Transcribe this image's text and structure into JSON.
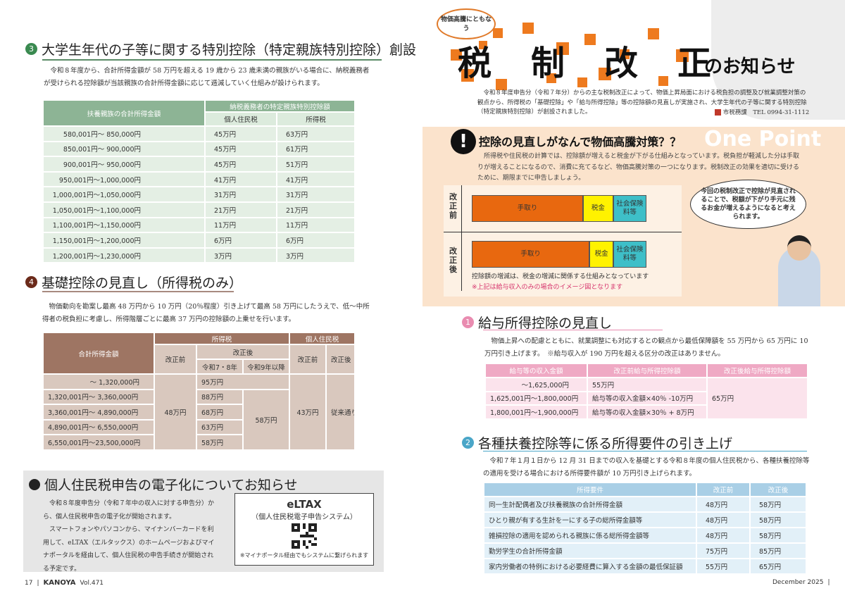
{
  "left_page": {
    "section3": {
      "number": "3",
      "title": "大学生年代の子等に関する特別控除（特定親族特別控除）創設",
      "body": "令和８年度から、合計所得金額が 58 万円を超える 19 歳から 23 歳未満の親族がいる場合に、納税義務者が受けられる控除額が当該親族の合計所得金額に応じて逓減していく仕組みが設けられます。",
      "table": {
        "col_income": "扶養親族の合計所得金額",
        "col_group": "納税義務者の特定親族特別控除額",
        "col_resident": "個人住民税",
        "col_income_tax": "所得税",
        "rows": [
          [
            "580,001円～ 850,000円",
            "45万円",
            "63万円"
          ],
          [
            "850,001円～ 900,000円",
            "45万円",
            "61万円"
          ],
          [
            "900,001円～ 950,000円",
            "45万円",
            "51万円"
          ],
          [
            "950,001円～1,000,000円",
            "41万円",
            "41万円"
          ],
          [
            "1,000,001円～1,050,000円",
            "31万円",
            "31万円"
          ],
          [
            "1,050,001円～1,100,000円",
            "21万円",
            "21万円"
          ],
          [
            "1,100,001円～1,150,000円",
            "11万円",
            "11万円"
          ],
          [
            "1,150,001円～1,200,000円",
            "6万円",
            "6万円"
          ],
          [
            "1,200,001円～1,230,000円",
            "3万円",
            "3万円"
          ]
        ]
      }
    },
    "section4": {
      "number": "4",
      "title": "基礎控除の見直し（所得税のみ）",
      "body": "物価動向を勘案し最高 48 万円から 10 万円（20％程度）引き上げて最高 58 万円にしたうえで、低～中所得者の税負担に考慮し、所得階層ごとに最高 37 万円の控除額の上乗せを行います。",
      "table": {
        "col_income": "合計所得金額",
        "col_income_tax": "所得税",
        "col_resident": "個人住民税",
        "before": "改正前",
        "after": "改正後",
        "r78": "令和7・8年",
        "r9": "令和9年以降",
        "rows": [
          "～ 1,320,000円",
          "1,320,001円～ 3,360,000円",
          "3,360,001円～ 4,890,000円",
          "4,890,001円～ 6,550,000円",
          "6,550,001円～23,500,000円"
        ],
        "it_before": "48万円",
        "r78_values": [
          "95万円",
          "88万円",
          "68万円",
          "63万円",
          "58万円"
        ],
        "r9_value": "58万円",
        "res_before": "43万円",
        "res_after": "従来通り"
      }
    },
    "efile": {
      "title": "個人住民税申告の電子化についてお知らせ",
      "p1": "令和８年度申告分（令和７年中の収入に対する申告分）から、個人住民税申告の電子化が開始されます。",
      "p2": "スマートフォンやパソコンから、マイナンバーカードを利用して、eLTAX（エルタックス）のホームページおよびマイナポータルを経由して、個人住民税の申告手続きが開始される予定です。",
      "box_title": "eLTAX",
      "box_subtitle": "（個人住民税電子申告システム）",
      "box_note": "※マイナポータル経由でもシステムに繋げられます"
    },
    "footer": {
      "page": "17",
      "sep": "|",
      "brand": "KANOYA",
      "vol": "Vol.471"
    }
  },
  "right_page": {
    "bubble": "物価高騰にともなう",
    "title_chars": [
      "税",
      "制",
      "改",
      "正"
    ],
    "title_suffix": "のお知らせ",
    "intro": "令和８年度申告分（令和７年分）からの主な税制改正によって、物価上昇局面における税負担の調整及び就業調整対策の観点から、所得税の「基礎控除」や「給与所得控除」等の控除額の見直しが実施され、大学生年代の子等に関する特別控除（特定親族特別控除）が創設されました。",
    "contact": {
      "dept": "市税務課",
      "tel": "TEL 0994-31-1112"
    },
    "one_point": {
      "watermark": "One Point",
      "title": "控除の見直しがなんで物価高騰対策？？",
      "body": "所得税や住民税の計算では、控除額が増えると税金が下がる仕組みとなっています。税負担が軽減した分は手取りが増えることになるので、消費に充てるなど、物価高騰対策の一つになります。税制改正の効果を適切に受けるために、期限までに申告しましょう。",
      "before_label": "改正前",
      "after_label": "改正後",
      "take_home": "手取り",
      "tax": "税金",
      "social": "社会保険料等",
      "note": "控除額の増減は、税金の増減に関係する仕組みとなっています",
      "note_red": "※上記は給与収入のみの場合のイメージ図となります",
      "speech": "今回の税制改正で控除が見直されることで、税額が下がり手元に残るお金が増えるようになると考えられます。"
    },
    "section1": {
      "number": "1",
      "title": "給与所得控除の見直し",
      "body": "物価上昇への配慮とともに、就業調整にも対応するとの観点から最低保障額を 55 万円から 65 万円に 10 万円引き上げます。　※給与収入が 190 万円を超える区分の改正はありません。",
      "table": {
        "headers": [
          "給与等の収入金額",
          "改正前給与所得控除額",
          "改正後給与所得控除額"
        ],
        "rows": [
          [
            "～1,625,000円",
            "55万円"
          ],
          [
            "1,625,001円～1,800,000円",
            "給与等の収入金額×40％ -10万円"
          ],
          [
            "1,800,001円～1,900,000円",
            "給与等の収入金額×30％ + 8万円"
          ]
        ],
        "after": "65万円"
      }
    },
    "section2": {
      "number": "2",
      "title": "各種扶養控除等に係る所得要件の引き上げ",
      "body": "令和７年１月１日から 12 月 31 日までの収入を基礎とする令和８年度の個人住民税から、各種扶養控除等の適用を受ける場合における所得要件額が 10 万円引き上げられます。",
      "table": {
        "headers": [
          "所得要件",
          "改正前",
          "改正後"
        ],
        "rows": [
          [
            "同一生計配偶者及び扶養親族の合計所得金額",
            "48万円",
            "58万円"
          ],
          [
            "ひとり親が有する生計を一にする子の総所得金額等",
            "48万円",
            "58万円"
          ],
          [
            "雑損控除の適用を認められる親族に係る総所得金額等",
            "48万円",
            "58万円"
          ],
          [
            "勤労学生の合計所得金額",
            "75万円",
            "85万円"
          ],
          [
            "家内労働者の特例における必要経費に算入する金額の最低保証額",
            "55万円",
            "65万円"
          ]
        ]
      }
    },
    "footer": {
      "date": "December 2025",
      "sep": "|"
    }
  },
  "colors": {
    "green": "#3a8a50",
    "brown": "#6b2a1a",
    "pink": "#e98cb0",
    "blue": "#4aa6c8",
    "orange": "#ee7a1e",
    "peach": "#fbe3cc"
  }
}
